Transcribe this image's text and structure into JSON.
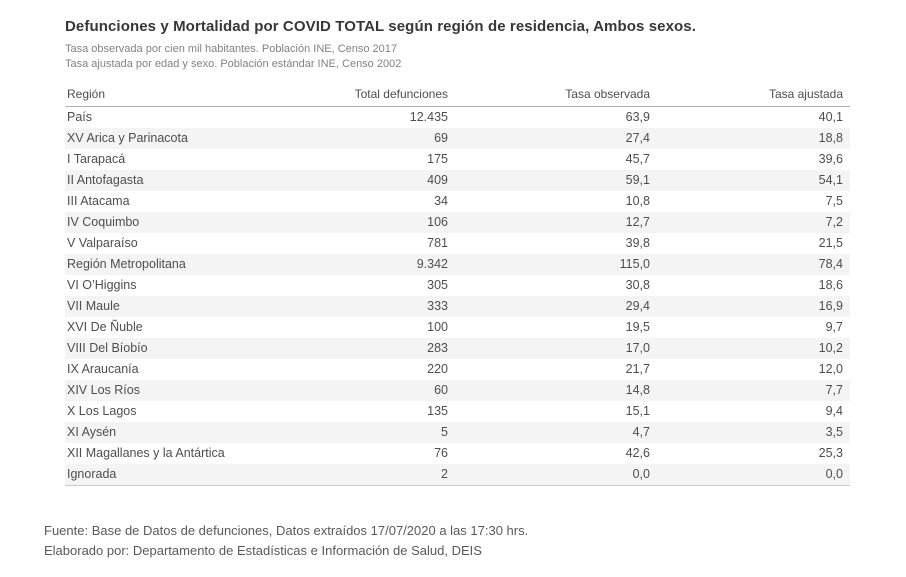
{
  "header": {
    "title": "Defunciones y Mortalidad por COVID TOTAL según región de residencia, Ambos sexos.",
    "subtitle1": "Tasa observada por cien mil habitantes. Población INE, Censo 2017",
    "subtitle2": "Tasa ajustada por edad y sexo. Población estándar INE, Censo 2002"
  },
  "chart_data": {
    "type": "table",
    "title": "Defunciones y Mortalidad por COVID TOTAL según región de residencia, Ambos sexos.",
    "columns": [
      "Región",
      "Total defunciones",
      "Tasa observada",
      "Tasa ajustada"
    ],
    "rows": [
      [
        "País",
        "12.435",
        "63,9",
        "40,1"
      ],
      [
        "XV Arica y Parinacota",
        "69",
        "27,4",
        "18,8"
      ],
      [
        "I Tarapacá",
        "175",
        "45,7",
        "39,6"
      ],
      [
        "II Antofagasta",
        "409",
        "59,1",
        "54,1"
      ],
      [
        "III Atacama",
        "34",
        "10,8",
        "7,5"
      ],
      [
        "IV Coquimbo",
        "106",
        "12,7",
        "7,2"
      ],
      [
        "V Valparaíso",
        "781",
        "39,8",
        "21,5"
      ],
      [
        "Región Metropolitana",
        "9.342",
        "115,0",
        "78,4"
      ],
      [
        "VI O’Higgins",
        "305",
        "30,8",
        "18,6"
      ],
      [
        "VII Maule",
        "333",
        "29,4",
        "16,9"
      ],
      [
        "XVI De Ñuble",
        "100",
        "19,5",
        "9,7"
      ],
      [
        "VIII Del Bíobío",
        "283",
        "17,0",
        "10,2"
      ],
      [
        "IX Araucanía",
        "220",
        "21,7",
        "12,0"
      ],
      [
        "XIV Los Ríos",
        "60",
        "14,8",
        "7,7"
      ],
      [
        "X Los Lagos",
        "135",
        "15,1",
        "9,4"
      ],
      [
        "XI Aysén",
        "5",
        "4,7",
        "3,5"
      ],
      [
        "XII Magallanes y la Antártica",
        "76",
        "42,6",
        "25,3"
      ],
      [
        "Ignorada",
        "2",
        "0,0",
        "0,0"
      ]
    ],
    "layout_hints": {
      "numeric_columns_right_aligned": true,
      "striped_rows": "even",
      "decimal_separator": ",",
      "thousands_separator": "."
    }
  },
  "footer": {
    "line1": "Fuente: Base de Datos de defunciones, Datos extraídos 17/07/2020 a las 17:30 hrs.",
    "line2": "Elaborado por: Departamento de Estadísticas e Información de Salud, DEIS"
  },
  "colors": {
    "row_stripe": "#f4f4f4",
    "text": "#4e4e4e",
    "title_text": "#373737",
    "subtitle_text": "#828282",
    "header_rule": "#aeaeae",
    "bottom_rule": "#c9c9c9",
    "background": "#ffffff"
  }
}
